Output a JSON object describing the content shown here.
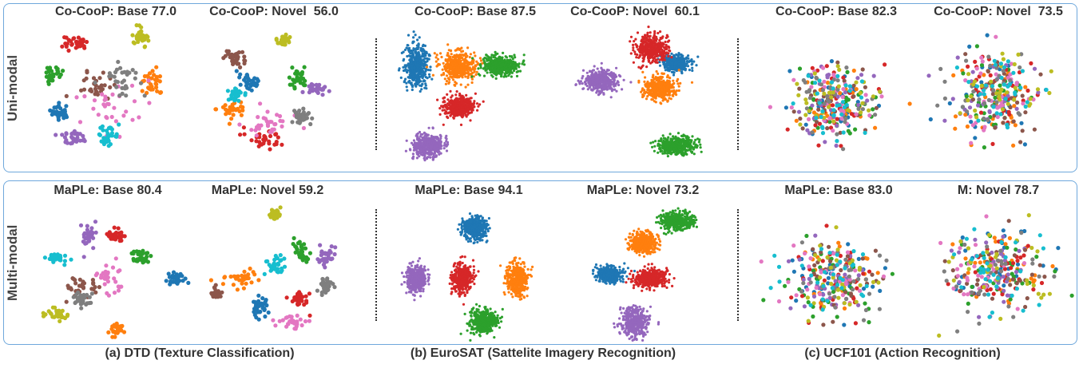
{
  "rows": {
    "top": {
      "label": "Uni-modal"
    },
    "bottom": {
      "label": "Multi-modal"
    }
  },
  "titles": {
    "t1": "Co-CooP: Base 77.0",
    "t2": "Co-CooP: Novel  56.0",
    "t3": "Co-CooP: Base 87.5",
    "t4": "Co-CooP: Novel  60.1",
    "t5": "Co-CooP: Base 82.3",
    "t6": "Co-CooP: Novel  73.5",
    "b1": "MaPLe: Base 80.4",
    "b2": "MaPLe: Novel 59.2",
    "b3": "MaPLe: Base 94.1",
    "b4": "MaPLe: Novel 73.2",
    "b5": "MaPLe: Base 83.0",
    "b6": "M: Novel 78.7"
  },
  "captions": {
    "a": "(a) DTD (Texture Classification)",
    "b": "(b) EuroSAT (Sattelite Imagery Recognition)",
    "c": "(c) UCF101 (Action Recognition)"
  },
  "colors": [
    "#1f77b4",
    "#ff7f0e",
    "#2ca02c",
    "#d62728",
    "#9467bd",
    "#8c564b",
    "#e377c2",
    "#7f7f7f",
    "#bcbd22",
    "#17becf"
  ],
  "chart_data": [
    {
      "type": "scatter",
      "title": "Co-CooP: Base 77.0",
      "clusters": [
        [
          0.17,
          0.62,
          0.06,
          0.05,
          0
        ],
        [
          0.72,
          0.41,
          0.06,
          0.1,
          1
        ],
        [
          0.12,
          0.35,
          0.06,
          0.06,
          2
        ],
        [
          0.26,
          0.14,
          0.07,
          0.05,
          3
        ],
        [
          0.25,
          0.8,
          0.1,
          0.06,
          4
        ],
        [
          0.38,
          0.45,
          0.1,
          0.1,
          5
        ],
        [
          0.45,
          0.58,
          0.18,
          0.18,
          6
        ],
        [
          0.55,
          0.4,
          0.12,
          0.12,
          7
        ],
        [
          0.65,
          0.1,
          0.05,
          0.06,
          8
        ],
        [
          0.45,
          0.78,
          0.06,
          0.06,
          9
        ]
      ]
    },
    {
      "type": "scatter",
      "title": "Co-CooP: Novel  56.0",
      "clusters": [
        [
          0.3,
          0.4,
          0.08,
          0.07,
          0
        ],
        [
          0.2,
          0.6,
          0.1,
          0.06,
          1
        ],
        [
          0.58,
          0.37,
          0.06,
          0.08,
          2
        ],
        [
          0.4,
          0.8,
          0.12,
          0.06,
          3
        ],
        [
          0.7,
          0.46,
          0.06,
          0.04,
          4
        ],
        [
          0.22,
          0.25,
          0.07,
          0.05,
          5
        ],
        [
          0.4,
          0.7,
          0.14,
          0.07,
          6
        ],
        [
          0.6,
          0.65,
          0.06,
          0.05,
          7
        ],
        [
          0.5,
          0.12,
          0.04,
          0.04,
          8
        ],
        [
          0.22,
          0.5,
          0.06,
          0.06,
          9
        ]
      ]
    },
    {
      "type": "scatter",
      "title": "Co-CooP: Base 87.5",
      "clusters": [
        [
          0.15,
          0.3,
          0.07,
          0.15,
          0
        ],
        [
          0.4,
          0.3,
          0.1,
          0.1,
          1
        ],
        [
          0.65,
          0.3,
          0.1,
          0.07,
          2
        ],
        [
          0.4,
          0.58,
          0.09,
          0.07,
          3
        ],
        [
          0.22,
          0.85,
          0.09,
          0.08,
          4
        ]
      ]
    },
    {
      "type": "scatter",
      "title": "Co-CooP: Novel  60.1",
      "clusters": [
        [
          0.7,
          0.28,
          0.08,
          0.05,
          0
        ],
        [
          0.6,
          0.45,
          0.09,
          0.08,
          1
        ],
        [
          0.7,
          0.85,
          0.12,
          0.06,
          2
        ],
        [
          0.55,
          0.18,
          0.1,
          0.09,
          3
        ],
        [
          0.25,
          0.4,
          0.1,
          0.07,
          4
        ]
      ]
    },
    {
      "type": "scatter",
      "title": "Co-CooP: Base 82.3",
      "clusters": [
        [
          0.5,
          0.55,
          0.25,
          0.25,
          0
        ],
        [
          0.5,
          0.55,
          0.25,
          0.25,
          1
        ],
        [
          0.5,
          0.55,
          0.25,
          0.25,
          2
        ],
        [
          0.5,
          0.55,
          0.25,
          0.25,
          3
        ],
        [
          0.5,
          0.55,
          0.25,
          0.25,
          4
        ],
        [
          0.5,
          0.55,
          0.25,
          0.25,
          5
        ],
        [
          0.5,
          0.55,
          0.25,
          0.25,
          6
        ],
        [
          0.5,
          0.55,
          0.25,
          0.25,
          7
        ],
        [
          0.5,
          0.55,
          0.25,
          0.25,
          8
        ],
        [
          0.5,
          0.55,
          0.25,
          0.25,
          9
        ]
      ]
    },
    {
      "type": "scatter",
      "title": "Co-CooP: Novel  73.5",
      "clusters": [
        [
          0.5,
          0.5,
          0.25,
          0.28,
          0
        ],
        [
          0.5,
          0.5,
          0.25,
          0.28,
          1
        ],
        [
          0.5,
          0.5,
          0.25,
          0.28,
          2
        ],
        [
          0.5,
          0.5,
          0.25,
          0.28,
          3
        ],
        [
          0.5,
          0.5,
          0.25,
          0.28,
          4
        ],
        [
          0.5,
          0.5,
          0.25,
          0.28,
          5
        ],
        [
          0.5,
          0.5,
          0.25,
          0.28,
          6
        ],
        [
          0.5,
          0.5,
          0.25,
          0.28,
          7
        ],
        [
          0.5,
          0.5,
          0.25,
          0.28,
          8
        ],
        [
          0.5,
          0.5,
          0.25,
          0.28,
          9
        ]
      ]
    },
    {
      "type": "scatter",
      "title": "MaPLe: Base 80.4",
      "clusters": [
        [
          0.85,
          0.55,
          0.05,
          0.05,
          0
        ],
        [
          0.5,
          0.9,
          0.06,
          0.05,
          1
        ],
        [
          0.65,
          0.4,
          0.06,
          0.05,
          2
        ],
        [
          0.5,
          0.25,
          0.05,
          0.04,
          3
        ],
        [
          0.35,
          0.25,
          0.05,
          0.1,
          4
        ],
        [
          0.3,
          0.6,
          0.08,
          0.07,
          5
        ],
        [
          0.45,
          0.55,
          0.07,
          0.1,
          6
        ],
        [
          0.3,
          0.7,
          0.06,
          0.05,
          7
        ],
        [
          0.15,
          0.8,
          0.07,
          0.04,
          8
        ],
        [
          0.15,
          0.4,
          0.06,
          0.04,
          9
        ]
      ]
    },
    {
      "type": "scatter",
      "title": "MaPLe: Novel 59.2",
      "clusters": [
        [
          0.35,
          0.75,
          0.06,
          0.08,
          0
        ],
        [
          0.25,
          0.55,
          0.12,
          0.06,
          1
        ],
        [
          0.6,
          0.35,
          0.05,
          0.1,
          2
        ],
        [
          0.6,
          0.7,
          0.06,
          0.05,
          3
        ],
        [
          0.75,
          0.4,
          0.05,
          0.06,
          4
        ],
        [
          0.1,
          0.65,
          0.05,
          0.04,
          5
        ],
        [
          0.55,
          0.85,
          0.08,
          0.05,
          6
        ],
        [
          0.75,
          0.6,
          0.04,
          0.05,
          7
        ],
        [
          0.45,
          0.1,
          0.04,
          0.04,
          8
        ],
        [
          0.45,
          0.45,
          0.06,
          0.06,
          9
        ]
      ]
    },
    {
      "type": "scatter",
      "title": "MaPLe: Base 94.1",
      "clusters": [
        [
          0.5,
          0.2,
          0.07,
          0.08,
          0
        ],
        [
          0.75,
          0.55,
          0.06,
          0.12,
          1
        ],
        [
          0.55,
          0.85,
          0.08,
          0.08,
          2
        ],
        [
          0.42,
          0.55,
          0.06,
          0.1,
          3
        ],
        [
          0.15,
          0.55,
          0.06,
          0.09,
          4
        ]
      ]
    },
    {
      "type": "scatter",
      "title": "MaPLe: Novel 73.2",
      "clusters": [
        [
          0.3,
          0.52,
          0.07,
          0.05,
          0
        ],
        [
          0.5,
          0.3,
          0.08,
          0.07,
          1
        ],
        [
          0.7,
          0.15,
          0.1,
          0.06,
          2
        ],
        [
          0.55,
          0.55,
          0.1,
          0.06,
          3
        ],
        [
          0.45,
          0.85,
          0.08,
          0.1,
          4
        ]
      ]
    },
    {
      "type": "scatter",
      "title": "MaPLe: Base 83.0",
      "clusters": [
        [
          0.5,
          0.55,
          0.28,
          0.25,
          0
        ],
        [
          0.5,
          0.55,
          0.28,
          0.25,
          1
        ],
        [
          0.5,
          0.55,
          0.28,
          0.25,
          2
        ],
        [
          0.5,
          0.55,
          0.28,
          0.25,
          3
        ],
        [
          0.5,
          0.55,
          0.28,
          0.25,
          4
        ],
        [
          0.5,
          0.55,
          0.28,
          0.25,
          5
        ],
        [
          0.5,
          0.55,
          0.28,
          0.25,
          6
        ],
        [
          0.5,
          0.55,
          0.28,
          0.25,
          7
        ],
        [
          0.5,
          0.55,
          0.28,
          0.25,
          8
        ],
        [
          0.5,
          0.55,
          0.28,
          0.25,
          9
        ]
      ]
    },
    {
      "type": "scatter",
      "title": "M: Novel 78.7",
      "clusters": [
        [
          0.5,
          0.5,
          0.28,
          0.28,
          0
        ],
        [
          0.5,
          0.5,
          0.28,
          0.28,
          1
        ],
        [
          0.5,
          0.5,
          0.28,
          0.28,
          2
        ],
        [
          0.5,
          0.5,
          0.28,
          0.28,
          3
        ],
        [
          0.5,
          0.5,
          0.28,
          0.28,
          4
        ],
        [
          0.5,
          0.5,
          0.28,
          0.28,
          5
        ],
        [
          0.5,
          0.5,
          0.28,
          0.28,
          6
        ],
        [
          0.5,
          0.5,
          0.28,
          0.28,
          7
        ],
        [
          0.5,
          0.5,
          0.28,
          0.28,
          8
        ],
        [
          0.5,
          0.5,
          0.28,
          0.28,
          9
        ]
      ]
    }
  ]
}
